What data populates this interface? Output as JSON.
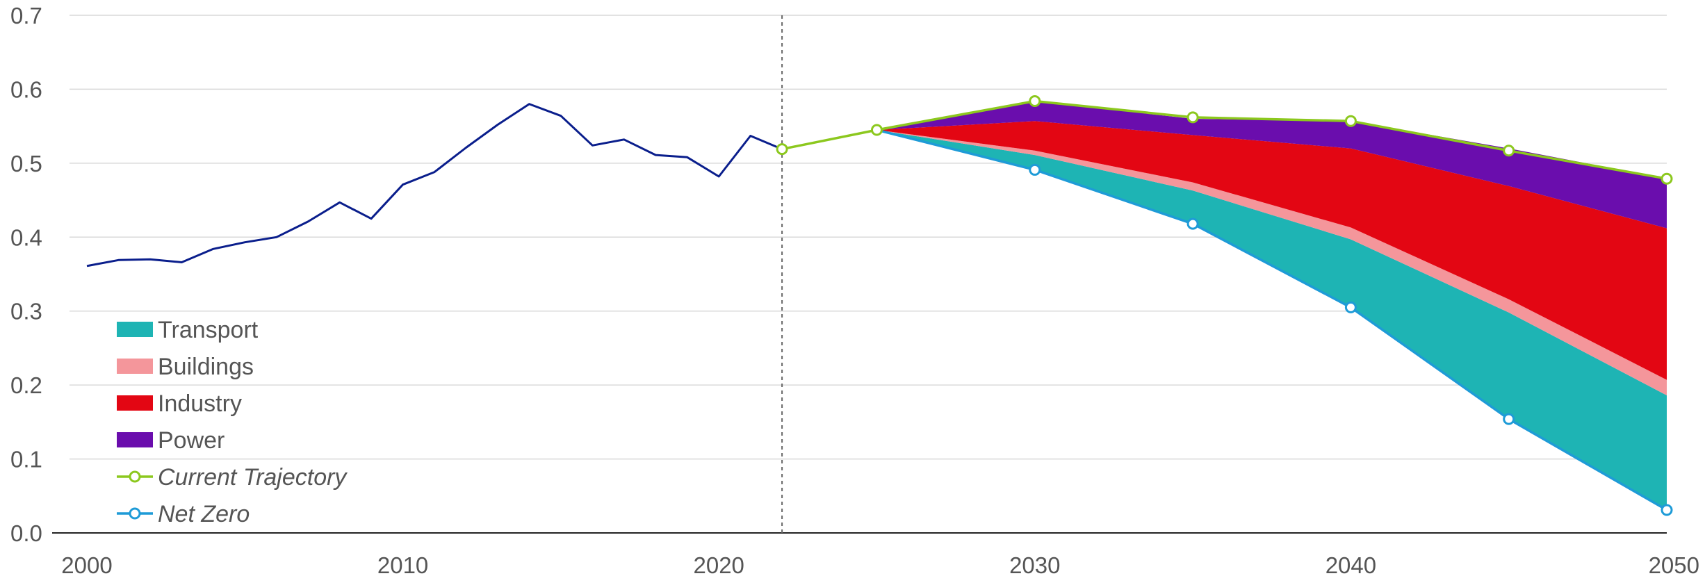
{
  "chart_data": {
    "type": "area",
    "title": "",
    "xlabel": "",
    "ylabel": "",
    "xlim": [
      2000,
      2050
    ],
    "ylim": [
      0,
      0.7
    ],
    "grid": true,
    "legend_position": "bottom-left",
    "x_ticks": [
      "2000",
      "2010",
      "2020",
      "2030",
      "2040",
      "2050"
    ],
    "y_ticks": [
      "0.0",
      "0.1",
      "0.2",
      "0.3",
      "0.4",
      "0.5",
      "0.6",
      "0.7"
    ],
    "divider_year": 2022,
    "historical": {
      "color": "#0a1e8c",
      "x": [
        2000,
        2001,
        2002,
        2003,
        2004,
        2005,
        2006,
        2007,
        2008,
        2009,
        2010,
        2011,
        2012,
        2013,
        2014,
        2015,
        2016,
        2017,
        2018,
        2019,
        2020,
        2021,
        2022
      ],
      "y": [
        0.361,
        0.369,
        0.37,
        0.366,
        0.384,
        0.393,
        0.4,
        0.421,
        0.447,
        0.425,
        0.471,
        0.488,
        0.521,
        0.552,
        0.58,
        0.564,
        0.524,
        0.532,
        0.511,
        0.508,
        0.482,
        0.537,
        0.519
      ]
    },
    "x": [
      2025,
      2030,
      2035,
      2040,
      2045,
      2050
    ],
    "series": [
      {
        "name": "Transport",
        "color": "#1eb4b4",
        "values": [
          0.0,
          0.02,
          0.045,
          0.092,
          0.144,
          0.155
        ]
      },
      {
        "name": "Buildings",
        "color": "#f4969b",
        "values": [
          0.0,
          0.006,
          0.011,
          0.016,
          0.018,
          0.021
        ]
      },
      {
        "name": "Industry",
        "color": "#e30613",
        "values": [
          0.0,
          0.04,
          0.064,
          0.107,
          0.153,
          0.205
        ]
      },
      {
        "name": "Power",
        "color": "#6a0dad",
        "values": [
          0.0,
          0.027,
          0.022,
          0.037,
          0.051,
          0.067
        ]
      }
    ],
    "lines": [
      {
        "name": "Current Trajectory",
        "color": "#8cc81e",
        "style": "italic",
        "x": [
          2022,
          2025,
          2030,
          2035,
          2040,
          2045,
          2050
        ],
        "y": [
          0.519,
          0.545,
          0.584,
          0.562,
          0.557,
          0.517,
          0.479
        ]
      },
      {
        "name": "Net Zero",
        "color": "#1e9bd7",
        "style": "italic",
        "x": [
          2025,
          2030,
          2035,
          2040,
          2045,
          2050
        ],
        "y": [
          0.545,
          0.491,
          0.418,
          0.305,
          0.154,
          0.031
        ]
      }
    ]
  }
}
